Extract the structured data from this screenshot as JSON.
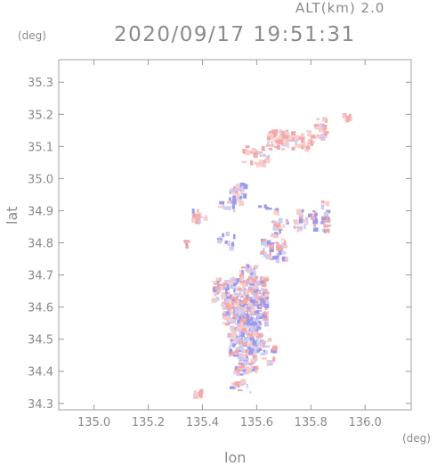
{
  "header": {
    "altitude_label": "ALT(km) 2.0",
    "datetime": "2020/09/17 19:51:31"
  },
  "axes": {
    "y_unit": "(deg)",
    "x_unit": "(deg)",
    "y_name": "lat",
    "x_name": "lon"
  },
  "colors": {
    "positive": "#f4a8a8",
    "negative": "#9a9aee",
    "light_positive": "#f8cccc",
    "light_negative": "#ccccf4",
    "axis": "#999999"
  },
  "chart_data": {
    "type": "scatter",
    "title": "2020/09/17 19:51:31",
    "subtitle": "ALT(km) 2.0",
    "xlabel": "lon",
    "ylabel": "lat",
    "xlim": [
      134.87,
      136.17
    ],
    "ylim": [
      34.28,
      35.37
    ],
    "xticks": [
      135.0,
      135.2,
      135.4,
      135.6,
      135.8,
      136.0
    ],
    "xtick_labels": [
      "135.0",
      "135.2",
      "135.4",
      "135.6",
      "135.8",
      "136.0"
    ],
    "yticks": [
      34.3,
      34.4,
      34.5,
      34.6,
      34.7,
      34.8,
      34.9,
      35.0,
      35.1,
      35.2,
      35.3
    ],
    "ytick_labels": [
      "34.3",
      "34.4",
      "34.5",
      "34.6",
      "34.7",
      "34.8",
      "34.9",
      "35.0",
      "35.1",
      "35.2",
      "35.3"
    ],
    "clusters": [
      {
        "lon": [
          135.82,
          135.86
        ],
        "lat": [
          35.12,
          35.19
        ],
        "n": 30
      },
      {
        "lon": [
          135.64,
          135.82
        ],
        "lat": [
          35.09,
          35.15
        ],
        "n": 90
      },
      {
        "lon": [
          135.55,
          135.66
        ],
        "lat": [
          35.04,
          35.1
        ],
        "n": 30
      },
      {
        "lon": [
          135.92,
          135.95
        ],
        "lat": [
          35.18,
          35.2
        ],
        "n": 8
      },
      {
        "lon": [
          135.5,
          135.56
        ],
        "lat": [
          34.92,
          34.98
        ],
        "n": 40
      },
      {
        "lon": [
          135.36,
          135.42
        ],
        "lat": [
          34.86,
          34.9
        ],
        "n": 20
      },
      {
        "lon": [
          135.46,
          135.52
        ],
        "lat": [
          34.9,
          34.93
        ],
        "n": 10
      },
      {
        "lon": [
          135.6,
          135.68
        ],
        "lat": [
          34.89,
          34.92
        ],
        "n": 8
      },
      {
        "lon": [
          135.66,
          135.72
        ],
        "lat": [
          34.82,
          34.87
        ],
        "n": 24
      },
      {
        "lon": [
          135.74,
          135.82
        ],
        "lat": [
          34.84,
          34.9
        ],
        "n": 35
      },
      {
        "lon": [
          135.84,
          135.87
        ],
        "lat": [
          34.83,
          34.93
        ],
        "n": 22
      },
      {
        "lon": [
          135.62,
          135.71
        ],
        "lat": [
          34.74,
          34.81
        ],
        "n": 45
      },
      {
        "lon": [
          135.46,
          135.52
        ],
        "lat": [
          34.78,
          34.83
        ],
        "n": 12
      },
      {
        "lon": [
          135.33,
          135.35
        ],
        "lat": [
          34.78,
          34.81
        ],
        "n": 5
      },
      {
        "lon": [
          135.54,
          135.6
        ],
        "lat": [
          34.69,
          34.73
        ],
        "n": 30
      },
      {
        "lon": [
          135.44,
          135.64
        ],
        "lat": [
          34.62,
          34.69
        ],
        "n": 170
      },
      {
        "lon": [
          135.47,
          135.64
        ],
        "lat": [
          34.54,
          34.62
        ],
        "n": 200
      },
      {
        "lon": [
          135.5,
          135.62
        ],
        "lat": [
          34.45,
          34.54
        ],
        "n": 160
      },
      {
        "lon": [
          135.52,
          135.6
        ],
        "lat": [
          34.39,
          34.45
        ],
        "n": 55
      },
      {
        "lon": [
          135.62,
          135.68
        ],
        "lat": [
          34.42,
          34.5
        ],
        "n": 18
      },
      {
        "lon": [
          135.5,
          135.58
        ],
        "lat": [
          34.33,
          34.37
        ],
        "n": 14
      },
      {
        "lon": [
          135.37,
          135.41
        ],
        "lat": [
          34.32,
          34.34
        ],
        "n": 8
      }
    ]
  }
}
